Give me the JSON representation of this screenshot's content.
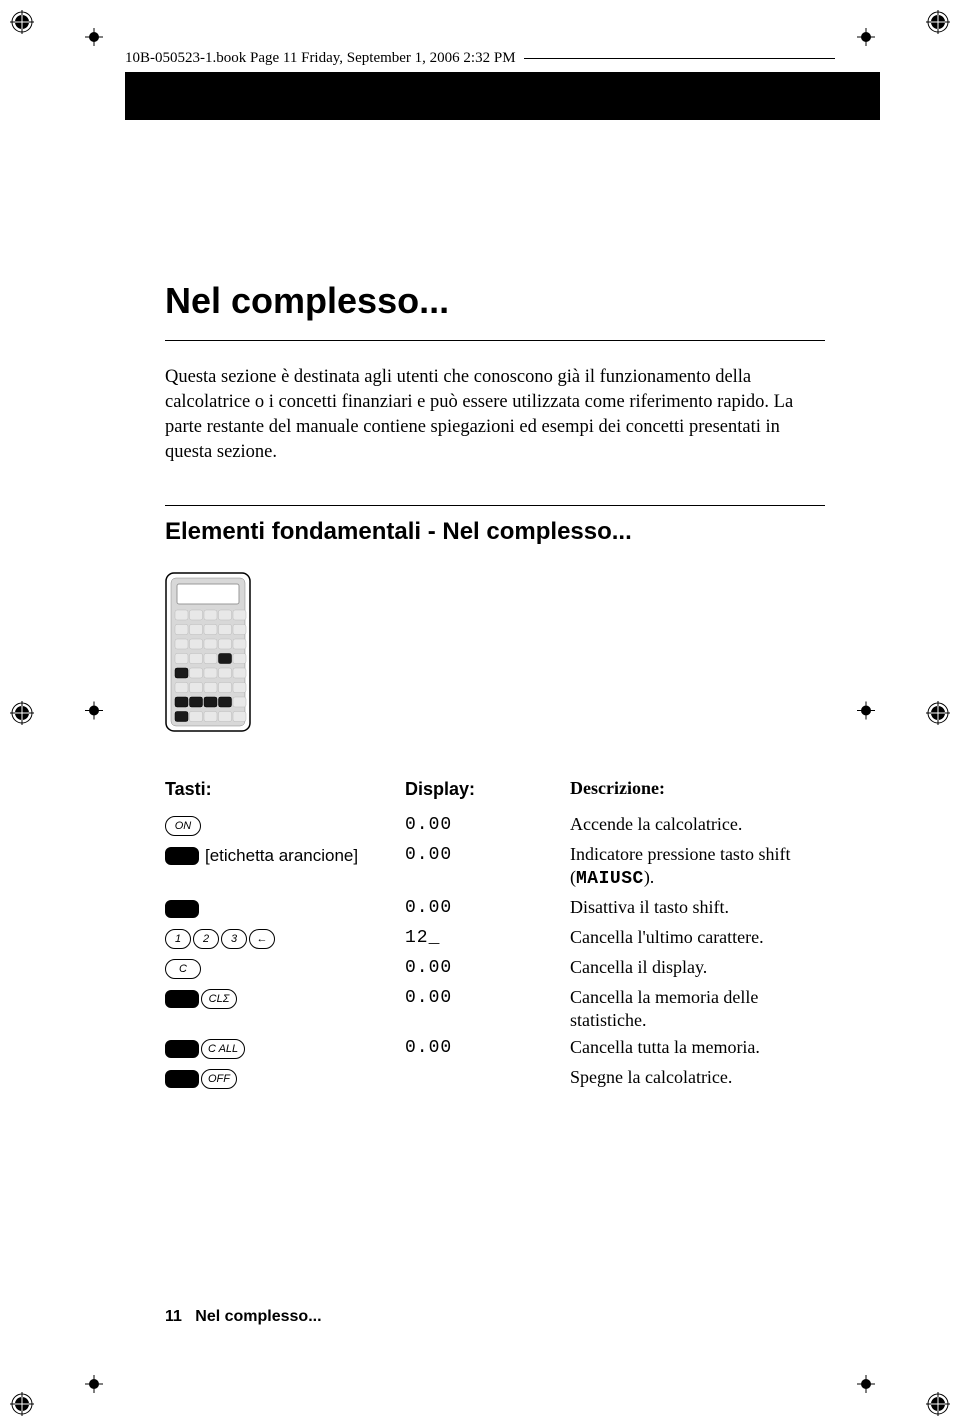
{
  "header": {
    "meta": "10B-050523-1.book  Page 11  Friday, September 1, 2006  2:32 PM"
  },
  "title": "Nel complesso...",
  "intro": "Questa sezione è destinata agli utenti che conoscono già il funzionamento della calcolatrice o i concetti finanziari e può essere utilizzata come riferimento rapido. La parte restante del manuale contiene spiegazioni ed esempi dei concetti presentati in questa sezione.",
  "section_heading": "Elementi fondamentali - Nel complesso...",
  "table": {
    "headers": {
      "tasti": "Tasti:",
      "display": "Display:",
      "desc": "Descrizione:"
    },
    "rows": [
      {
        "keys": [
          {
            "t": "key",
            "label": "ON",
            "wide": true
          }
        ],
        "extra": "",
        "display": "0.00",
        "desc": "Accende la calcolatrice."
      },
      {
        "keys": [
          {
            "t": "solid"
          }
        ],
        "extra": " [etichetta arancione]",
        "display": "0.00",
        "desc_html": "Indicatore pressione tasto shift (<span class='maiusc'>MAIUSC</span>)."
      },
      {
        "keys": [
          {
            "t": "solid"
          }
        ],
        "extra": "",
        "display": "0.00",
        "desc": "Disattiva il tasto shift."
      },
      {
        "keys": [
          {
            "t": "key",
            "label": "1"
          },
          {
            "t": "key",
            "label": "2"
          },
          {
            "t": "key",
            "label": "3"
          },
          {
            "t": "key",
            "label": "←"
          }
        ],
        "extra": "",
        "display": "12_",
        "desc": "Cancella l'ultimo carattere."
      },
      {
        "keys": [
          {
            "t": "key",
            "label": "C",
            "wide": true
          }
        ],
        "extra": "",
        "display": "0.00",
        "desc": "Cancella il display."
      },
      {
        "keys": [
          {
            "t": "solid"
          },
          {
            "t": "key",
            "label": "CLΣ",
            "wide": true
          }
        ],
        "extra": "",
        "display": "0.00",
        "desc": "Cancella la memoria delle statistiche."
      },
      {
        "keys": [
          {
            "t": "solid"
          },
          {
            "t": "key",
            "label": "C ALL",
            "wide": true
          }
        ],
        "extra": "",
        "display": "0.00",
        "desc": "Cancella tutta la memoria."
      },
      {
        "keys": [
          {
            "t": "solid"
          },
          {
            "t": "key",
            "label": "OFF",
            "wide": true
          }
        ],
        "extra": "",
        "display": "",
        "desc": "Spegne la calcolatrice."
      }
    ]
  },
  "footer": {
    "page": "11",
    "label": "Nel complesso..."
  },
  "calculator": {
    "highlighted_cells": [
      [
        3,
        3
      ],
      [
        4,
        0
      ],
      [
        6,
        0
      ],
      [
        6,
        1
      ],
      [
        6,
        2
      ],
      [
        6,
        3
      ],
      [
        7,
        0
      ]
    ],
    "rows": 8,
    "cols": 5,
    "body_color": "#d8d8d8",
    "cell_color": "#e8e8e8",
    "cell_dark": "#1a1a1a"
  },
  "colors": {
    "text": "#000000",
    "bg": "#ffffff"
  }
}
